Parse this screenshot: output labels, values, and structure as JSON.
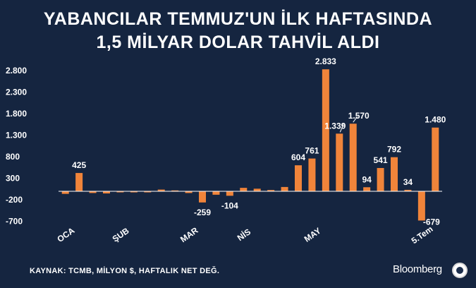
{
  "title_line1": "YABANCILAR TEMMUZ'UN İLK HAFTASINDA",
  "title_line2": "1,5 MİLYAR DOLAR TAHVİL ALDI",
  "source": "KAYNAK: TCMB, MİLYON $, HAFTALIK NET DEĞ.",
  "brand": "Bloomberg",
  "colors": {
    "background": "#152540",
    "bar": "#f0843a",
    "text": "#ffffff",
    "zero_line": "#ffffff"
  },
  "chart_data": {
    "type": "bar",
    "ylim": [
      -900,
      3000
    ],
    "yticks": [
      2800,
      2300,
      1800,
      1300,
      800,
      300,
      -200,
      -700
    ],
    "ytick_labels": [
      "2.800",
      "2.300",
      "1.800",
      "1.300",
      "800",
      "300",
      "-200",
      "-700"
    ],
    "values": [
      -60,
      425,
      -40,
      -50,
      -20,
      0,
      -10,
      40,
      20,
      -40,
      -259,
      -80,
      -104,
      80,
      60,
      30,
      100,
      604,
      761,
      2833,
      1339,
      1570,
      94,
      541,
      792,
      34,
      -679,
      1480
    ],
    "value_labels": [
      {
        "index": 1,
        "text": "425"
      },
      {
        "index": 10,
        "text": "-259"
      },
      {
        "index": 12,
        "text": "-104"
      },
      {
        "index": 17,
        "text": "604"
      },
      {
        "index": 18,
        "text": "761"
      },
      {
        "index": 19,
        "text": "2.833"
      },
      {
        "index": 20,
        "text": "1.339"
      },
      {
        "index": 21,
        "text": "1.570"
      },
      {
        "index": 22,
        "text": "94"
      },
      {
        "index": 23,
        "text": "541"
      },
      {
        "index": 24,
        "text": "792"
      },
      {
        "index": 25,
        "text": "34"
      },
      {
        "index": 26,
        "text": "-679"
      },
      {
        "index": 27,
        "text": "1.480"
      }
    ],
    "x_labels": [
      {
        "index": 0,
        "text": "OCA"
      },
      {
        "index": 4,
        "text": "ŞUB"
      },
      {
        "index": 9,
        "text": "MAR"
      },
      {
        "index": 13,
        "text": "NİS"
      },
      {
        "index": 18,
        "text": "MAY"
      },
      {
        "index": 26,
        "text": "5.Tem"
      }
    ]
  }
}
